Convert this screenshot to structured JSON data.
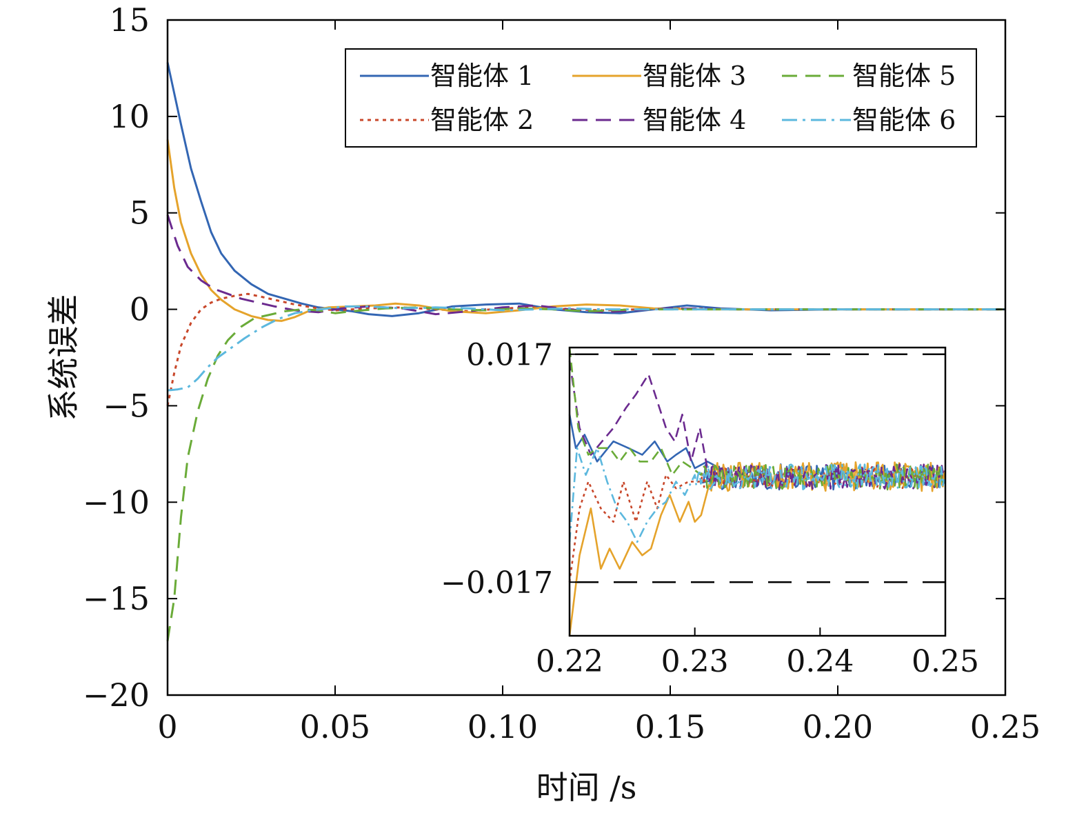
{
  "chart_data": [
    {
      "type": "line",
      "xlabel": "时间 /s",
      "ylabel": "系统误差",
      "xlim": [
        0,
        0.25
      ],
      "ylim": [
        -20,
        15
      ],
      "xticks": [
        0,
        0.05,
        0.1,
        0.15,
        0.2,
        0.25
      ],
      "xtick_labels": [
        "0",
        "0.05",
        "0.10",
        "0.15",
        "0.20",
        "0.25"
      ],
      "yticks": [
        15,
        10,
        5,
        0,
        -5,
        -10,
        -15,
        -20
      ],
      "ytick_labels": [
        "15",
        "10",
        "5",
        "0",
        "−5",
        "−10",
        "−15",
        "−20"
      ],
      "legend_position": "top-right",
      "series": [
        {
          "name": "智能体 1",
          "color": "#3366b3",
          "style": "solid",
          "x": [
            0,
            0.002,
            0.004,
            0.007,
            0.01,
            0.013,
            0.016,
            0.02,
            0.025,
            0.03,
            0.035,
            0.04,
            0.045,
            0.05,
            0.055,
            0.06,
            0.067,
            0.075,
            0.085,
            0.095,
            0.105,
            0.115,
            0.125,
            0.135,
            0.145,
            0.155,
            0.165,
            0.18,
            0.2,
            0.22,
            0.25
          ],
          "y": [
            12.8,
            11.2,
            9.6,
            7.3,
            5.6,
            4.0,
            2.9,
            2.0,
            1.3,
            0.8,
            0.55,
            0.3,
            0.1,
            0.0,
            -0.1,
            -0.25,
            -0.35,
            -0.2,
            0.15,
            0.25,
            0.3,
            0.0,
            -0.15,
            -0.2,
            0.0,
            0.2,
            0.05,
            -0.05,
            0.0,
            0.0,
            0.0
          ]
        },
        {
          "name": "智能体 2",
          "color": "#c8472a",
          "style": "dotted",
          "x": [
            0,
            0.002,
            0.004,
            0.007,
            0.01,
            0.013,
            0.016,
            0.02,
            0.024,
            0.028,
            0.033,
            0.038,
            0.045,
            0.05,
            0.06,
            0.07,
            0.08,
            0.09,
            0.1,
            0.11,
            0.12,
            0.13,
            0.15,
            0.17,
            0.2,
            0.25
          ],
          "y": [
            -5.0,
            -3.3,
            -1.9,
            -0.7,
            0.0,
            0.35,
            0.55,
            0.7,
            0.8,
            0.65,
            0.45,
            0.25,
            0.05,
            -0.05,
            0.05,
            0.1,
            0.0,
            -0.1,
            0.05,
            0.1,
            0.0,
            -0.05,
            0.05,
            0.0,
            0.0,
            0.0
          ]
        },
        {
          "name": "智能体 3",
          "color": "#e5a32b",
          "style": "solid",
          "x": [
            0,
            0.002,
            0.004,
            0.007,
            0.01,
            0.013,
            0.016,
            0.02,
            0.025,
            0.03,
            0.034,
            0.038,
            0.042,
            0.048,
            0.055,
            0.062,
            0.068,
            0.075,
            0.085,
            0.095,
            0.105,
            0.115,
            0.125,
            0.135,
            0.145,
            0.16,
            0.18,
            0.2,
            0.25
          ],
          "y": [
            8.8,
            6.3,
            4.5,
            2.9,
            1.8,
            1.0,
            0.5,
            0.0,
            -0.35,
            -0.55,
            -0.6,
            -0.4,
            -0.1,
            0.1,
            0.15,
            0.2,
            0.3,
            0.2,
            -0.1,
            -0.2,
            -0.05,
            0.15,
            0.25,
            0.2,
            0.05,
            0.0,
            0.0,
            0.0,
            0.0
          ]
        },
        {
          "name": "智能体 4",
          "color": "#6b2a8f",
          "style": "dashed",
          "x": [
            0,
            0.003,
            0.006,
            0.01,
            0.014,
            0.018,
            0.022,
            0.027,
            0.032,
            0.038,
            0.045,
            0.052,
            0.06,
            0.07,
            0.08,
            0.09,
            0.1,
            0.11,
            0.12,
            0.13,
            0.15,
            0.17,
            0.2,
            0.25
          ],
          "y": [
            4.9,
            3.3,
            2.2,
            1.5,
            1.05,
            0.8,
            0.55,
            0.35,
            0.15,
            -0.05,
            -0.15,
            0.05,
            0.15,
            0.05,
            -0.25,
            -0.1,
            0.1,
            0.2,
            0.0,
            -0.15,
            0.05,
            0.0,
            0.0,
            0.0
          ]
        },
        {
          "name": "智能体 5",
          "color": "#6aab38",
          "style": "dashed",
          "x": [
            0,
            0.002,
            0.004,
            0.006,
            0.009,
            0.012,
            0.015,
            0.018,
            0.022,
            0.026,
            0.03,
            0.035,
            0.04,
            0.045,
            0.05,
            0.055,
            0.065,
            0.075,
            0.085,
            0.095,
            0.105,
            0.115,
            0.125,
            0.14,
            0.16,
            0.18,
            0.2,
            0.25
          ],
          "y": [
            -17.2,
            -15.0,
            -10.8,
            -7.7,
            -5.3,
            -3.6,
            -2.4,
            -1.6,
            -0.9,
            -0.45,
            -0.3,
            -0.1,
            0.0,
            -0.05,
            -0.2,
            -0.1,
            0.05,
            0.1,
            0.0,
            -0.05,
            0.05,
            0.0,
            -0.1,
            0.0,
            0.0,
            0.0,
            0.0,
            0.0
          ]
        },
        {
          "name": "智能体 6",
          "color": "#5cb8de",
          "style": "dashdot",
          "x": [
            0,
            0.003,
            0.006,
            0.009,
            0.012,
            0.015,
            0.019,
            0.023,
            0.028,
            0.033,
            0.038,
            0.043,
            0.048,
            0.053,
            0.06,
            0.07,
            0.08,
            0.09,
            0.1,
            0.11,
            0.12,
            0.13,
            0.15,
            0.17,
            0.2,
            0.25
          ],
          "y": [
            -4.2,
            -4.15,
            -4.05,
            -3.6,
            -3.0,
            -2.5,
            -2.0,
            -1.5,
            -0.95,
            -0.5,
            -0.2,
            -0.05,
            0.05,
            0.15,
            0.15,
            0.05,
            0.1,
            0.05,
            -0.05,
            0.0,
            0.05,
            0.0,
            0.0,
            0.0,
            0.0,
            0.0
          ]
        }
      ]
    },
    {
      "type": "line",
      "xlim": [
        0.22,
        0.25
      ],
      "ylim": [
        -0.025,
        0.018
      ],
      "xticks": [
        0.22,
        0.23,
        0.24,
        0.25
      ],
      "xtick_labels": [
        "0.22",
        "0.23",
        "0.24",
        "0.25"
      ],
      "yticks": [
        0.017,
        -0.017
      ],
      "ytick_labels": [
        "0.017",
        "−0.017"
      ],
      "reference_lines": [
        0.017,
        -0.017
      ],
      "series": [
        {
          "name": "智能体 1",
          "color": "#3366b3",
          "style": "solid",
          "x": [
            0.22,
            0.2205,
            0.2212,
            0.2222,
            0.2235,
            0.2247,
            0.2258,
            0.2268,
            0.2278,
            0.2285,
            0.2293,
            0.23,
            0.231,
            0.232,
            0.233
          ],
          "y": [
            0.008,
            0.003,
            0.005,
            0.001,
            0.004,
            0.003,
            0.002,
            0.004,
            0.001,
            0.002,
            0.003,
            0.0,
            0.001,
            0.0,
            -0.001
          ],
          "noise_from": 0.2305,
          "noise_to": 0.25,
          "noise_center": -0.0013,
          "noise_amp": 0.0019
        },
        {
          "name": "智能体 2",
          "color": "#c8472a",
          "style": "dotted",
          "x": [
            0.22,
            0.2208,
            0.2215,
            0.2225,
            0.2235,
            0.2243,
            0.2253,
            0.2262,
            0.227,
            0.2277,
            0.2285,
            0.2295,
            0.2305
          ],
          "y": [
            -0.017,
            -0.006,
            -0.002,
            -0.006,
            -0.008,
            -0.002,
            -0.008,
            -0.002,
            -0.006,
            -0.001,
            -0.003,
            -0.002,
            -0.002
          ],
          "noise_from": 0.2305,
          "noise_to": 0.25,
          "noise_center": -0.0013,
          "noise_amp": 0.0017
        },
        {
          "name": "智能体 3",
          "color": "#e5a32b",
          "style": "solid",
          "x": [
            0.22,
            0.2208,
            0.2217,
            0.2225,
            0.2232,
            0.224,
            0.225,
            0.2258,
            0.2265,
            0.2273,
            0.228,
            0.2288,
            0.2295,
            0.23,
            0.2305,
            0.2312
          ],
          "y": [
            -0.025,
            -0.013,
            -0.006,
            -0.015,
            -0.012,
            -0.015,
            -0.011,
            -0.013,
            -0.012,
            -0.007,
            -0.004,
            -0.008,
            -0.005,
            -0.008,
            -0.007,
            -0.002
          ],
          "noise_from": 0.2312,
          "noise_to": 0.25,
          "noise_center": -0.0013,
          "noise_amp": 0.0022
        },
        {
          "name": "智能体 4",
          "color": "#6b2a8f",
          "style": "dashed",
          "x": [
            0.22,
            0.2208,
            0.2217,
            0.2226,
            0.2235,
            0.2245,
            0.2253,
            0.2263,
            0.227,
            0.2277,
            0.2284,
            0.229,
            0.2297,
            0.2304,
            0.231
          ],
          "y": [
            0.016,
            0.006,
            0.002,
            0.004,
            0.006,
            0.009,
            0.011,
            0.014,
            0.01,
            0.006,
            0.004,
            0.008,
            0.001,
            0.006,
            0.0
          ],
          "noise_from": 0.231,
          "noise_to": 0.25,
          "noise_center": -0.0012,
          "noise_amp": 0.0019
        },
        {
          "name": "智能体 5",
          "color": "#6aab38",
          "style": "dashed",
          "x": [
            0.22,
            0.2207,
            0.2215,
            0.2222,
            0.2232,
            0.224,
            0.2248,
            0.2256,
            0.2265,
            0.2273,
            0.2282,
            0.229,
            0.2298,
            0.2305
          ],
          "y": [
            0.018,
            0.006,
            0.002,
            0.003,
            0.003,
            0.001,
            0.003,
            0.001,
            0.001,
            0.003,
            -0.001,
            0.001,
            0.0,
            -0.001
          ],
          "noise_from": 0.2305,
          "noise_to": 0.25,
          "noise_center": -0.0013,
          "noise_amp": 0.0019
        },
        {
          "name": "智能体 6",
          "color": "#5cb8de",
          "style": "dashdot",
          "x": [
            0.22,
            0.2206,
            0.2213,
            0.2222,
            0.223,
            0.2238,
            0.2246,
            0.2254,
            0.2262,
            0.227,
            0.2277,
            0.2285,
            0.2292,
            0.23
          ],
          "y": [
            -0.011,
            0.003,
            -0.001,
            0.003,
            -0.002,
            -0.006,
            -0.008,
            -0.011,
            -0.008,
            -0.006,
            -0.005,
            -0.002,
            -0.004,
            -0.001
          ],
          "noise_from": 0.23,
          "noise_to": 0.25,
          "noise_center": -0.0013,
          "noise_amp": 0.0019
        }
      ]
    }
  ]
}
